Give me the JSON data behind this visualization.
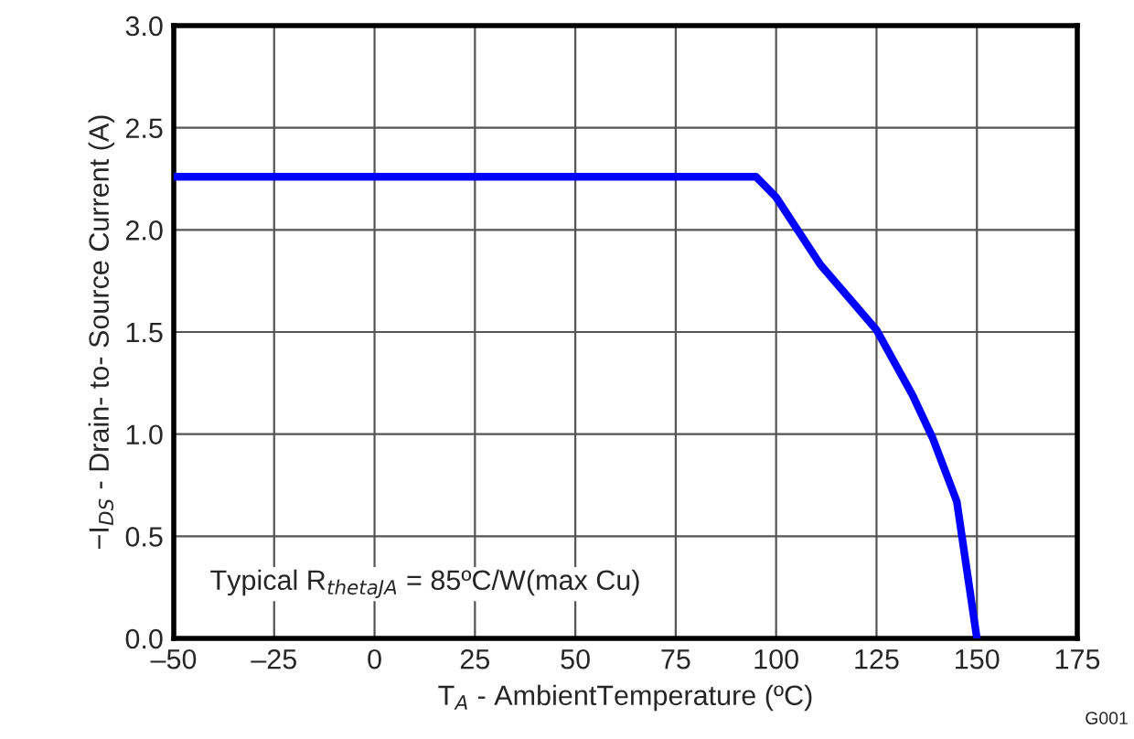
{
  "chart_data": {
    "type": "line",
    "xlabel": "T$_{A}$ - AmbientTemperature (ºC)",
    "ylabel": "−I$_{DS}$ - Drain- to- Source Current (A)",
    "annotations": [
      "Typical R$_{thetaJA}$ = 85ºC/W(max Cu)",
      "G001"
    ],
    "x": [
      -50,
      95,
      100,
      111,
      125,
      134,
      139,
      145,
      150
    ],
    "series": [
      {
        "color": "#0000ff",
        "values": [
          2.26,
          2.26,
          2.16,
          1.83,
          1.51,
          1.19,
          0.98,
          0.67,
          0
        ]
      }
    ],
    "xlim": [
      -50,
      175
    ],
    "ylim": [
      0,
      3
    ],
    "xticks": [
      {
        "value": -50,
        "label": "–50"
      },
      {
        "value": -25,
        "label": "–25"
      },
      0,
      25,
      50,
      75,
      100,
      125,
      150,
      175
    ],
    "yticks": [
      {
        "value": 0,
        "label": "0.0"
      },
      {
        "value": 0.5,
        "label": "0.5"
      },
      {
        "value": 1,
        "label": "1.0"
      },
      {
        "value": 1.5,
        "label": "1.5"
      },
      {
        "value": 2,
        "label": "2.0"
      },
      {
        "value": 2.5,
        "label": "2.5"
      },
      {
        "value": 3,
        "label": "3.0"
      }
    ],
    "grid": true,
    "legend": false,
    "marker": "none",
    "line_style": "solid"
  }
}
